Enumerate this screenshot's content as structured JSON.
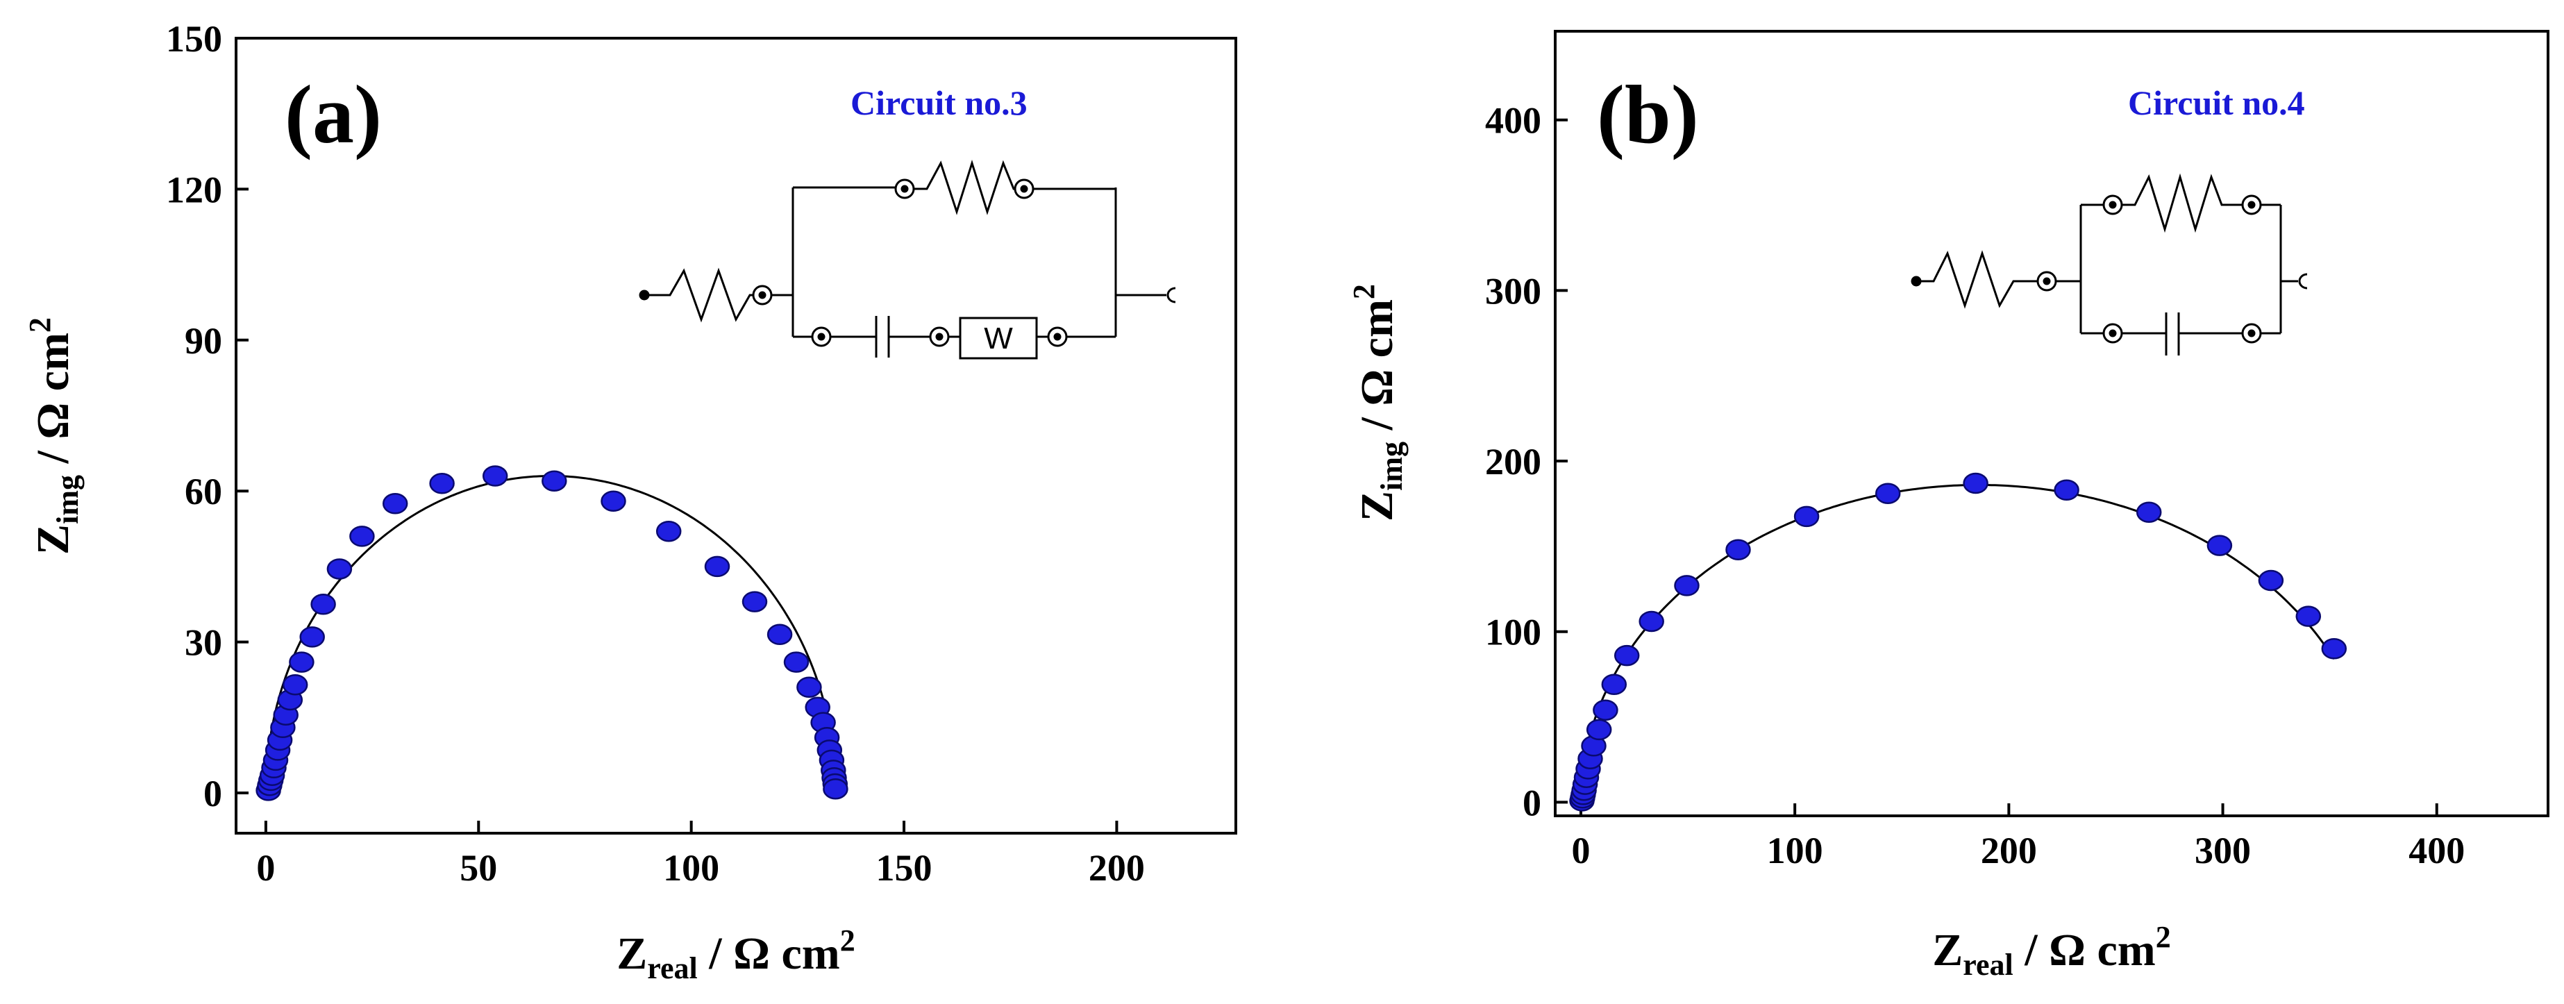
{
  "colors": {
    "marker": "#1f1fe0",
    "marker_edge": "#0a0a70",
    "line": "#000000",
    "circuit_label": "#1a1ad6"
  },
  "chart_data": [
    {
      "type": "scatter",
      "panel_label": "(a)",
      "circuit_label": "Circuit no.3",
      "circuit_element_label": "W",
      "xlabel": {
        "main": "Z",
        "sub": "real",
        "unit": " / Ω cm",
        "sup": "2"
      },
      "ylabel": {
        "main": "Z",
        "sub": "img",
        "unit": " / Ω cm",
        "sup": "2"
      },
      "xlim": [
        -7,
        228
      ],
      "ylim": [
        -8,
        150
      ],
      "xticks": [
        0,
        50,
        100,
        150,
        200
      ],
      "yticks": [
        0,
        30,
        60,
        90,
        120,
        150
      ],
      "xtick_labels": [
        "0",
        "50",
        "100",
        "150",
        "200"
      ],
      "ytick_labels": [
        "0",
        "30",
        "60",
        "90",
        "120",
        "150"
      ],
      "fit_line": {
        "type": "semicircle",
        "x0": 0,
        "x1": 134,
        "peak": 63
      },
      "x": [
        0.6,
        0.9,
        1.2,
        1.5,
        1.9,
        2.3,
        2.8,
        3.3,
        4.0,
        4.7,
        5.7,
        6.9,
        8.4,
        10.9,
        13.5,
        17.3,
        22.6,
        30.4,
        41.4,
        53.9,
        67.8,
        81.7,
        94.7,
        106.1,
        114.9,
        120.8,
        124.7,
        127.7,
        129.7,
        131.0,
        131.9,
        132.5,
        133.0,
        133.4,
        133.6,
        133.8,
        133.9
      ],
      "y": [
        0.5,
        1.5,
        2.5,
        3.5,
        5.0,
        6.5,
        8.5,
        10.5,
        13.0,
        15.5,
        18.5,
        21.5,
        26.0,
        31.0,
        37.5,
        44.5,
        51.0,
        57.5,
        61.5,
        63.0,
        62.0,
        58.0,
        52.0,
        45.0,
        38.0,
        31.5,
        26.0,
        21.0,
        17.0,
        14.0,
        11.0,
        8.5,
        6.5,
        4.5,
        3.0,
        1.8,
        0.8
      ]
    },
    {
      "type": "scatter",
      "panel_label": "(b)",
      "circuit_label": "Circuit no.4",
      "xlabel": {
        "main": "Z",
        "sub": "real",
        "unit": " / Ω cm",
        "sup": "2"
      },
      "ylabel": {
        "main": "Z",
        "sub": "img",
        "unit": " / Ω cm",
        "sup": "2"
      },
      "xlim": [
        -12,
        452
      ],
      "ylim": [
        -8,
        452
      ],
      "xticks": [
        0,
        100,
        200,
        300,
        400
      ],
      "yticks": [
        0,
        100,
        200,
        300,
        400
      ],
      "xtick_labels": [
        "0",
        "100",
        "200",
        "300",
        "400"
      ],
      "ytick_labels": [
        "0",
        "100",
        "200",
        "300",
        "400"
      ],
      "fit_line": {
        "type": "arc",
        "x0": 0,
        "x1": 372,
        "peak": 186
      },
      "x": [
        0.5,
        0.8,
        1.1,
        1.5,
        2.0,
        2.6,
        3.4,
        4.4,
        6.0,
        8.5,
        11.5,
        15.5,
        21.5,
        33.0,
        49.5,
        73.5,
        105.5,
        143.5,
        184.5,
        227.0,
        265.5,
        298.5,
        322.5,
        340.0,
        352.0
      ],
      "y": [
        0.8,
        2.5,
        4.5,
        7.0,
        10.5,
        14.5,
        19.5,
        25.5,
        33.0,
        42.5,
        54.0,
        69.0,
        86.0,
        106.0,
        127.0,
        148.0,
        167.5,
        181.0,
        187.0,
        183.0,
        170.0,
        150.5,
        130.0,
        109.0,
        90.0
      ]
    }
  ]
}
